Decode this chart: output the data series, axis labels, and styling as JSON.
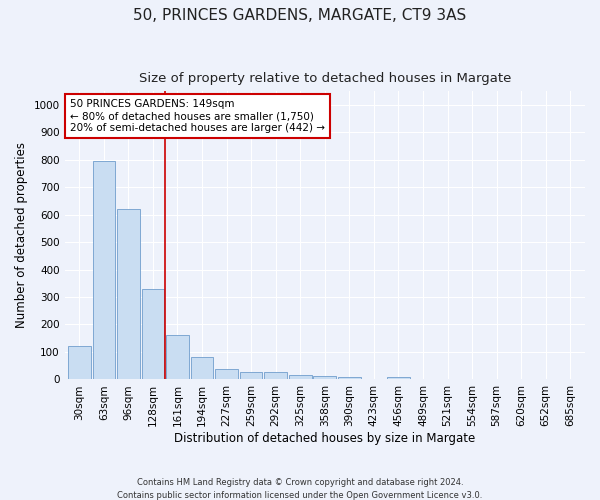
{
  "title": "50, PRINCES GARDENS, MARGATE, CT9 3AS",
  "subtitle": "Size of property relative to detached houses in Margate",
  "xlabel": "Distribution of detached houses by size in Margate",
  "ylabel": "Number of detached properties",
  "bar_values": [
    122,
    793,
    619,
    330,
    160,
    82,
    37,
    27,
    26,
    18,
    12,
    9,
    0,
    8,
    0,
    0,
    0,
    0,
    0,
    0,
    0
  ],
  "bin_labels": [
    "30sqm",
    "63sqm",
    "96sqm",
    "128sqm",
    "161sqm",
    "194sqm",
    "227sqm",
    "259sqm",
    "292sqm",
    "325sqm",
    "358sqm",
    "390sqm",
    "423sqm",
    "456sqm",
    "489sqm",
    "521sqm",
    "554sqm",
    "587sqm",
    "620sqm",
    "652sqm",
    "685sqm"
  ],
  "bar_color": "#c9ddf2",
  "bar_edge_color": "#5b8ec4",
  "red_line_x": 3.5,
  "annotation_text": "50 PRINCES GARDENS: 149sqm\n← 80% of detached houses are smaller (1,750)\n20% of semi-detached houses are larger (442) →",
  "annotation_box_color": "#ffffff",
  "annotation_border_color": "#cc0000",
  "ylim": [
    0,
    1050
  ],
  "yticks": [
    0,
    100,
    200,
    300,
    400,
    500,
    600,
    700,
    800,
    900,
    1000
  ],
  "footer": "Contains HM Land Registry data © Crown copyright and database right 2024.\nContains public sector information licensed under the Open Government Licence v3.0.",
  "bg_color": "#eef2fb",
  "grid_color": "#ffffff",
  "title_fontsize": 11,
  "subtitle_fontsize": 9.5,
  "tick_fontsize": 7.5,
  "label_fontsize": 8.5
}
